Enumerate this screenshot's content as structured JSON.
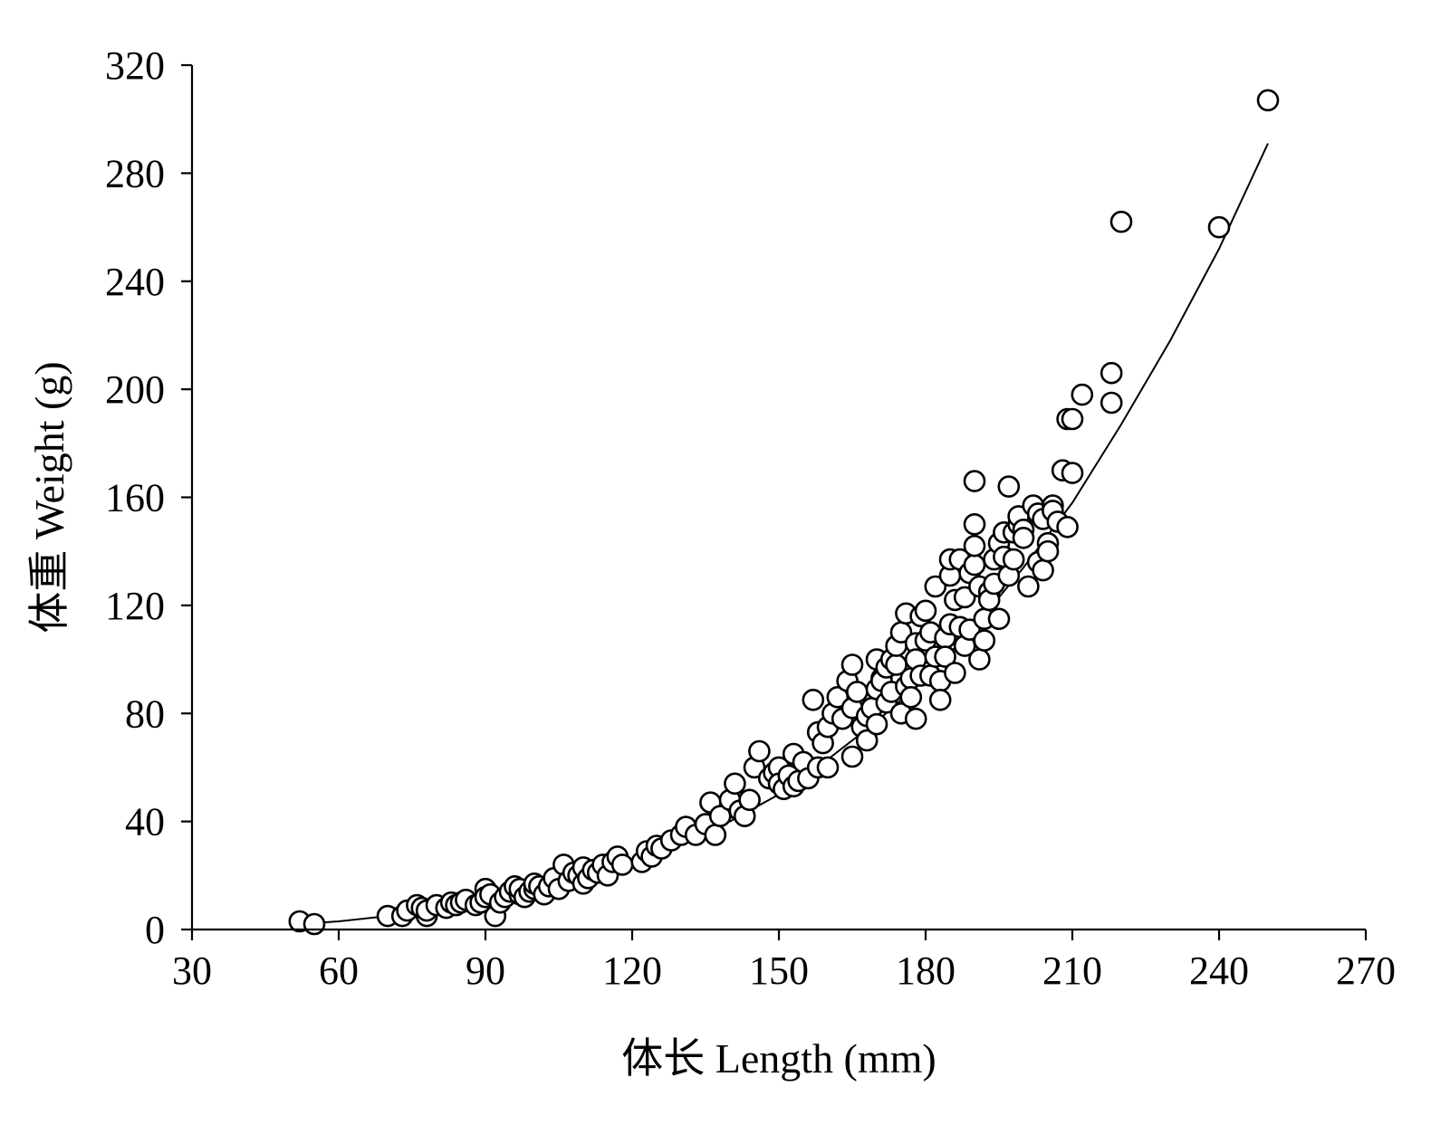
{
  "chart_data": {
    "type": "scatter",
    "xlabel": "体长 Length (mm)",
    "ylabel": "体重 Weight (g)",
    "xlim": [
      30,
      270
    ],
    "ylim": [
      0,
      320
    ],
    "xticks": [
      30,
      60,
      90,
      120,
      150,
      180,
      210,
      240,
      270
    ],
    "yticks": [
      0,
      40,
      80,
      120,
      160,
      200,
      240,
      280,
      320
    ],
    "x_tick_labels": [
      "30",
      "60",
      "90",
      "120",
      "150",
      "180",
      "210",
      "240",
      "270"
    ],
    "y_tick_labels": [
      "0",
      "40",
      "80",
      "120",
      "160",
      "200",
      "240",
      "280",
      "320"
    ],
    "marker": "open-circle",
    "fit_curve": {
      "x": [
        52,
        60,
        70,
        80,
        90,
        100,
        110,
        120,
        130,
        140,
        150,
        160,
        170,
        180,
        190,
        200,
        210,
        220,
        230,
        240,
        250
      ],
      "y": [
        2,
        3,
        5,
        7,
        10,
        14,
        19,
        25,
        32,
        40,
        50,
        63,
        77,
        93,
        112,
        134,
        158,
        187,
        218,
        252,
        291
      ]
    },
    "points": {
      "x": [
        52,
        55,
        70,
        73,
        74,
        76,
        77,
        78,
        78,
        80,
        82,
        83,
        84,
        85,
        86,
        88,
        89,
        90,
        90,
        91,
        92,
        93,
        94,
        95,
        96,
        97,
        97,
        98,
        99,
        100,
        100,
        101,
        102,
        103,
        104,
        105,
        106,
        107,
        108,
        109,
        110,
        110,
        111,
        112,
        113,
        114,
        115,
        116,
        117,
        118,
        122,
        123,
        124,
        125,
        126,
        128,
        130,
        131,
        133,
        135,
        136,
        137,
        138,
        140,
        141,
        142,
        143,
        144,
        145,
        146,
        148,
        149,
        150,
        150,
        151,
        152,
        153,
        153,
        154,
        155,
        156,
        157,
        158,
        158,
        159,
        160,
        160,
        161,
        162,
        163,
        164,
        165,
        165,
        165,
        166,
        167,
        168,
        168,
        169,
        170,
        170,
        170,
        171,
        171,
        172,
        172,
        173,
        173,
        174,
        174,
        175,
        175,
        176,
        176,
        177,
        177,
        178,
        178,
        178,
        179,
        179,
        180,
        180,
        181,
        181,
        182,
        182,
        183,
        183,
        184,
        184,
        185,
        185,
        185,
        186,
        186,
        187,
        187,
        188,
        188,
        189,
        189,
        190,
        190,
        190,
        190,
        191,
        191,
        192,
        192,
        193,
        193,
        194,
        194,
        195,
        195,
        196,
        196,
        197,
        197,
        198,
        198,
        199,
        199,
        200,
        200,
        201,
        202,
        203,
        203,
        204,
        204,
        205,
        205,
        206,
        206,
        207,
        208,
        209,
        209,
        210,
        210,
        212,
        218,
        218,
        220,
        240,
        250
      ],
      "y": [
        3,
        2,
        5,
        5,
        7,
        9,
        8,
        5,
        7,
        9,
        8,
        10,
        9,
        10,
        11,
        9,
        10,
        15,
        12,
        13,
        5,
        10,
        12,
        14,
        16,
        13,
        15,
        12,
        14,
        15,
        17,
        16,
        13,
        16,
        19,
        15,
        24,
        18,
        21,
        20,
        17,
        23,
        19,
        22,
        21,
        24,
        20,
        25,
        27,
        24,
        25,
        29,
        27,
        31,
        30,
        33,
        35,
        38,
        35,
        39,
        47,
        35,
        42,
        48,
        54,
        44,
        42,
        48,
        60,
        66,
        56,
        58,
        60,
        54,
        52,
        57,
        53,
        65,
        55,
        62,
        56,
        85,
        73,
        60,
        69,
        75,
        60,
        80,
        86,
        78,
        92,
        64,
        82,
        98,
        88,
        75,
        70,
        79,
        82,
        100,
        76,
        89,
        93,
        92,
        84,
        97,
        100,
        88,
        98,
        105,
        80,
        110,
        90,
        117,
        93,
        86,
        106,
        78,
        100,
        116,
        94,
        107,
        118,
        94,
        110,
        101,
        127,
        92,
        85,
        108,
        101,
        131,
        113,
        137,
        95,
        122,
        112,
        137,
        123,
        105,
        132,
        111,
        166,
        150,
        135,
        142,
        127,
        100,
        115,
        107,
        125,
        122,
        137,
        128,
        115,
        143,
        147,
        138,
        131,
        164,
        147,
        137,
        150,
        153,
        148,
        145,
        127,
        157,
        154,
        136,
        152,
        133,
        143,
        140,
        157,
        155,
        151,
        170,
        189,
        149,
        169,
        189,
        198,
        206,
        195,
        262,
        260,
        307
      ]
    }
  }
}
